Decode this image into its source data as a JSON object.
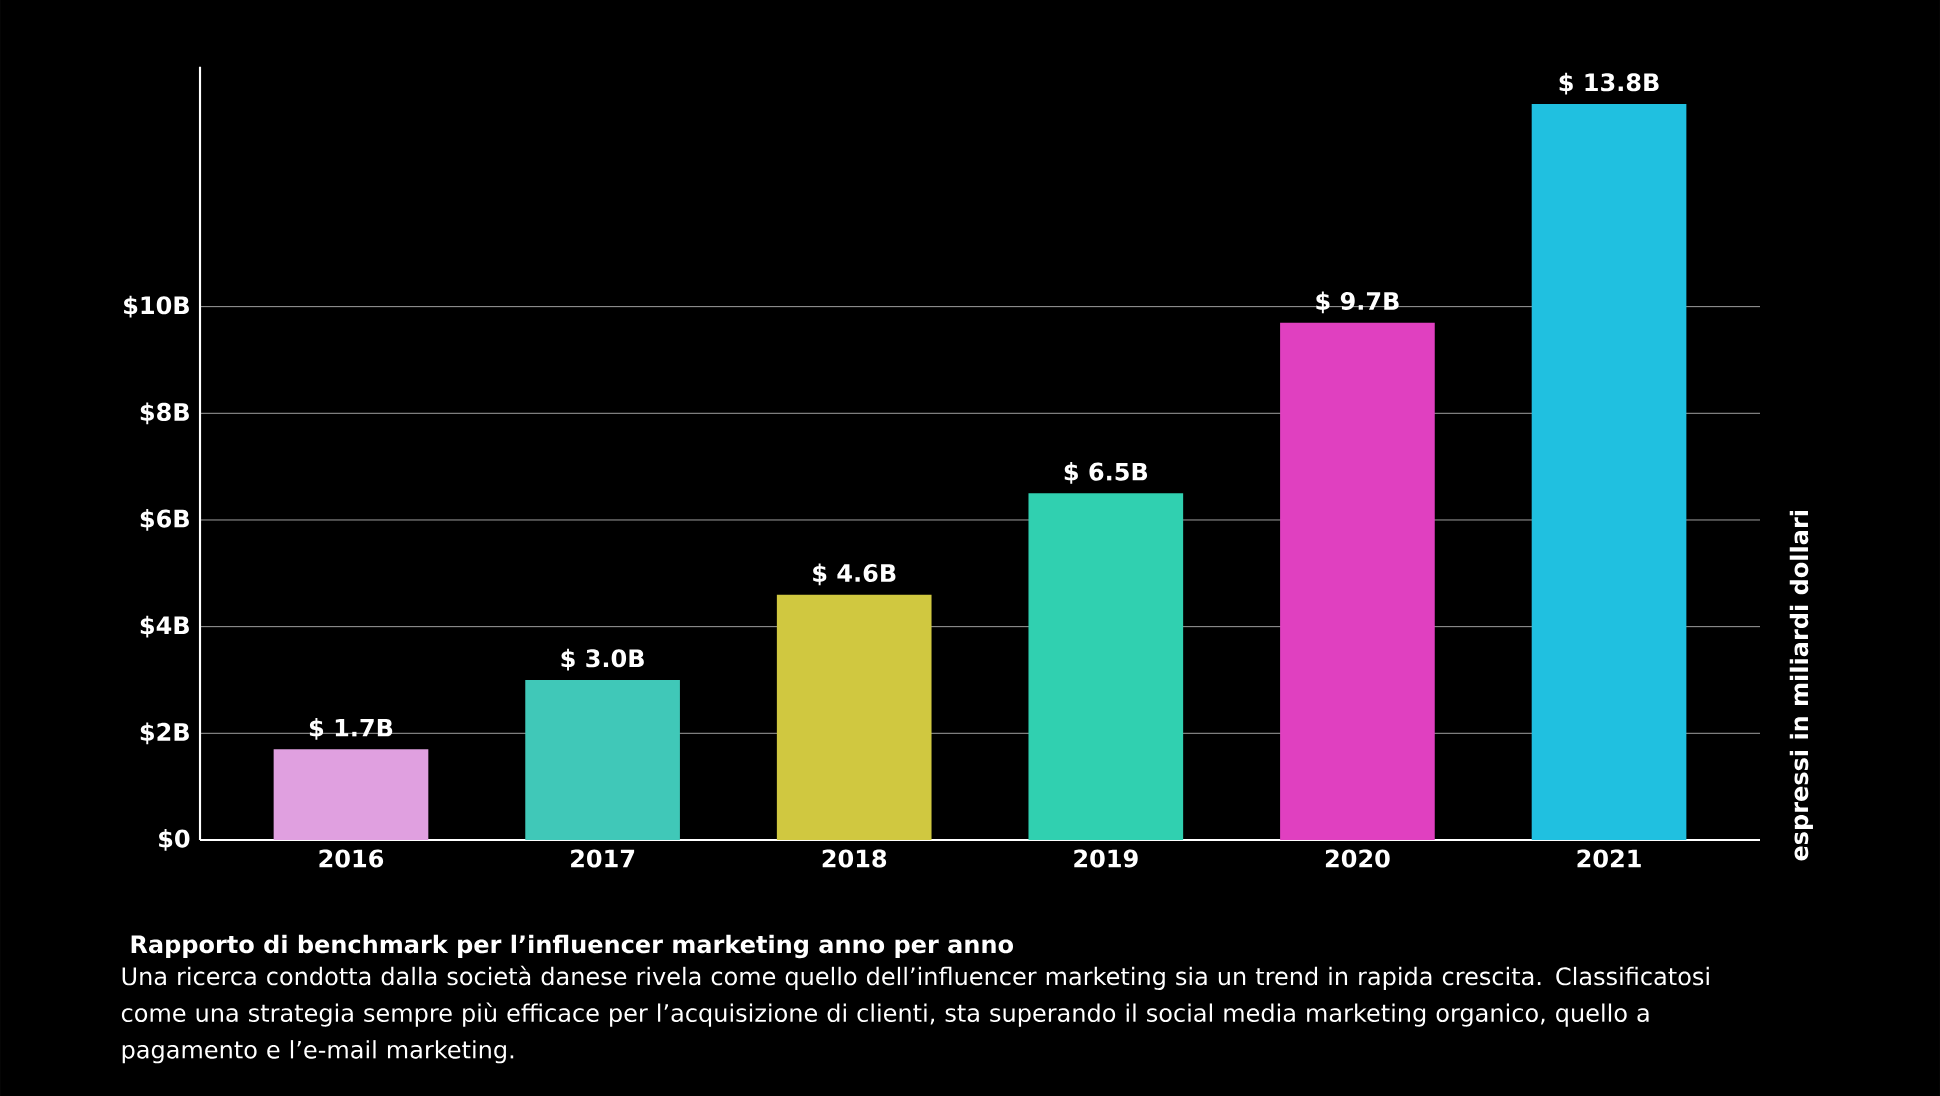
{
  "chart_data": {
    "type": "bar",
    "title": "Rapporto di benchmark per l’influencer marketing anno per anno",
    "subtitle": "Una ricerca condotta dalla società danese rivela come quello dell’influencer marketing sia un trend in rapida crescita. Classificatosi come una strategia sempre più efficace per l’acquisizione di clienti, sta superando il social media marketing organico, quello a pagamento e l’e-mail marketing.",
    "ylabel": "espressi in miliardi dollari",
    "categories": [
      "2016",
      "2017",
      "2018",
      "2019",
      "2020",
      "2021"
    ],
    "values": [
      1.7,
      3.0,
      4.6,
      6.5,
      9.7,
      13.8
    ],
    "value_labels": [
      "$ 1.7B",
      "$ 3.0B",
      "$ 4.6B",
      "$ 6.5B",
      "$ 9.7B",
      "$ 13.8B"
    ],
    "colors": [
      "#e0a0e0",
      "#40c8b8",
      "#d0c840",
      "#30d0b0",
      "#e040c0",
      "#20c0e0"
    ],
    "ylim": [
      0,
      14.5
    ],
    "yticks": [
      {
        "value": 0,
        "label": "$0"
      },
      {
        "value": 2,
        "label": "$2B"
      },
      {
        "value": 4,
        "label": "$4B"
      },
      {
        "value": 6,
        "label": "$6B"
      },
      {
        "value": 8,
        "label": "$8B"
      },
      {
        "value": 10,
        "label": "$10B"
      }
    ],
    "grid": "y"
  }
}
